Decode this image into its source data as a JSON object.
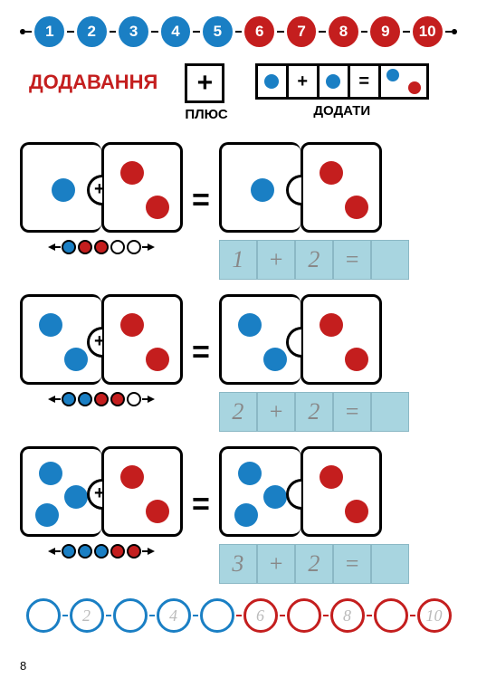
{
  "colors": {
    "blue": "#1a7fc4",
    "red": "#c41e1e",
    "boxbg": "#a8d5e0",
    "trace": "#999"
  },
  "top_numbers": [
    1,
    2,
    3,
    4,
    5,
    6,
    7,
    8,
    9,
    10
  ],
  "title": "ДОДАВАННЯ",
  "plus": {
    "symbol": "+",
    "label": "ПЛЮС"
  },
  "dodaty": {
    "label": "ДОДАТИ",
    "eq": "="
  },
  "rows": [
    {
      "left_blue": 1,
      "left_red": 0,
      "right_red": 2,
      "beads": [
        "b",
        "r",
        "r",
        "w",
        "w"
      ],
      "answer": [
        "1",
        "+",
        "2",
        "=",
        ""
      ]
    },
    {
      "left_blue": 2,
      "left_red": 0,
      "right_red": 2,
      "beads": [
        "b",
        "b",
        "r",
        "r",
        "w"
      ],
      "answer": [
        "2",
        "+",
        "2",
        "=",
        ""
      ]
    },
    {
      "left_blue": 3,
      "left_red": 0,
      "right_red": 2,
      "beads": [
        "b",
        "b",
        "b",
        "r",
        "r"
      ],
      "answer": [
        "3",
        "+",
        "2",
        "=",
        ""
      ]
    }
  ],
  "bottom": [
    "",
    "2",
    "",
    "4",
    "",
    "6",
    "",
    "8",
    "",
    "10"
  ],
  "page": "8"
}
